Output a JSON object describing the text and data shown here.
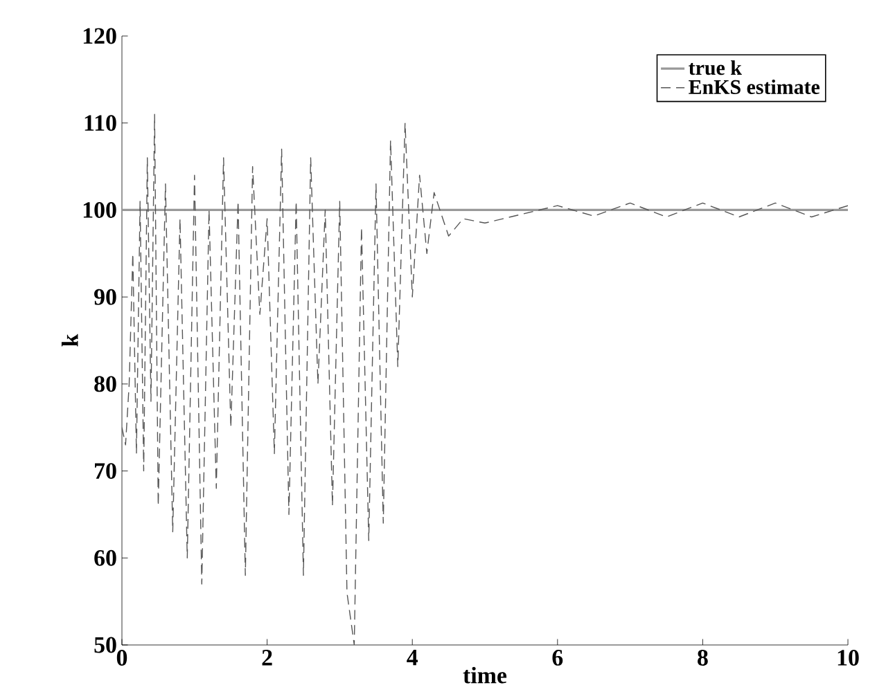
{
  "chart_data": {
    "type": "line",
    "xlabel": "time",
    "ylabel": "k",
    "xlim": [
      0,
      10
    ],
    "ylim": [
      50,
      120
    ],
    "xticks": [
      0,
      2,
      4,
      6,
      8,
      10
    ],
    "yticks": [
      50,
      60,
      70,
      80,
      90,
      100,
      110,
      120
    ],
    "grid": false,
    "legend": "top right",
    "series": [
      {
        "name": "true k",
        "color": "#999999",
        "line_style": "solid",
        "x": [
          0,
          10
        ],
        "values": [
          100,
          100
        ]
      },
      {
        "name": "EnKS estimate",
        "color": "#555555",
        "line_style": "dashed",
        "x": [
          0,
          0.05,
          0.1,
          0.15,
          0.2,
          0.25,
          0.3,
          0.35,
          0.4,
          0.45,
          0.5,
          0.6,
          0.7,
          0.8,
          0.9,
          1.0,
          1.1,
          1.2,
          1.3,
          1.4,
          1.5,
          1.6,
          1.7,
          1.8,
          1.9,
          2.0,
          2.1,
          2.2,
          2.3,
          2.4,
          2.5,
          2.6,
          2.7,
          2.8,
          2.9,
          3.0,
          3.1,
          3.2,
          3.3,
          3.4,
          3.5,
          3.6,
          3.7,
          3.8,
          3.9,
          4.0,
          4.1,
          4.2,
          4.3,
          4.5,
          4.7,
          5.0,
          5.5,
          6.0,
          6.5,
          7.0,
          7.5,
          8.0,
          8.5,
          9.0,
          9.5,
          10
        ],
        "values": [
          75,
          73,
          80,
          95,
          72,
          101,
          70,
          106,
          78,
          111,
          66,
          103,
          63,
          99,
          60,
          104,
          57,
          100,
          68,
          106,
          75,
          101,
          58,
          105,
          88,
          99,
          72,
          107,
          65,
          101,
          58,
          106,
          80,
          100,
          66,
          101,
          56,
          50,
          98,
          62,
          103,
          64,
          108,
          82,
          110,
          90,
          104,
          95,
          102,
          97,
          99,
          98.5,
          99.5,
          100.5,
          99.3,
          100.8,
          99.2,
          100.8,
          99.2,
          100.8,
          99.2,
          100.5
        ]
      }
    ]
  }
}
